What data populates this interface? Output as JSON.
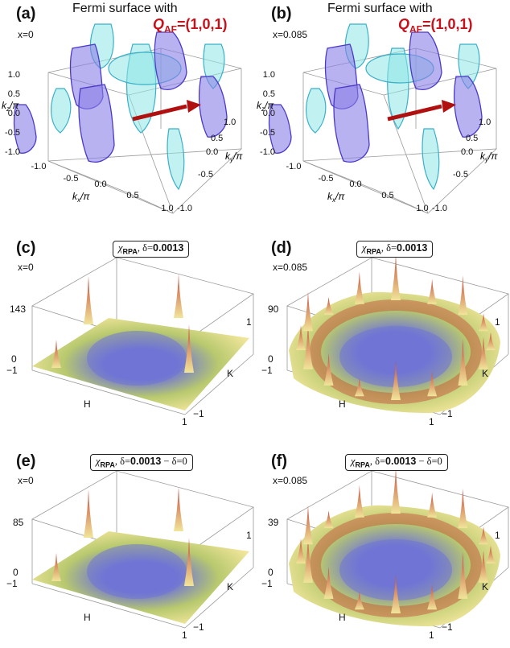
{
  "top_panels": [
    {
      "label": "(a)",
      "title": "Fermi surface with",
      "q_prefix": "Q",
      "q_sub": "AF",
      "q_value": "=(1,0,1)",
      "x_value": "x=0",
      "kz_ticks": [
        "1.0",
        "0.5",
        "0.0",
        "-0.5",
        "-1.0"
      ],
      "kx_ticks": [
        "-1.0",
        "-0.5",
        "0.0",
        "0.5",
        "1.0"
      ],
      "ky_ticks": [
        "1.0",
        "0.5",
        "0.0",
        "-0.5",
        "-1.0"
      ],
      "kz_label": "k",
      "kx_label": "k",
      "ky_label": "k"
    },
    {
      "label": "(b)",
      "title": "Fermi surface with",
      "q_prefix": "Q",
      "q_sub": "AF",
      "q_value": "=(1,0,1)",
      "x_value": "x=0.085",
      "kz_ticks": [
        "1.0",
        "0.5",
        "0.0",
        "-0.5",
        "-1.0"
      ],
      "kx_ticks": [
        "-1.0",
        "-0.5",
        "0.0",
        "0.5",
        "1.0"
      ],
      "ky_ticks": [
        "1.0",
        "0.5",
        "0.0",
        "-0.5",
        "-1.0"
      ],
      "kz_label": "k",
      "kx_label": "k",
      "ky_label": "k"
    }
  ],
  "surface_panels": [
    {
      "label": "(c)",
      "x_value": "x=0",
      "chi": "χ",
      "chi_sub": "RPA",
      "delta_text": ", δ=",
      "delta_value": "0.0013",
      "delta_suffix": "",
      "zmax": "143",
      "zmin": "0",
      "h_min": "−1",
      "h_max": "1",
      "k_min": "−1",
      "k_max": "1",
      "h_label": "H",
      "k_label": "K"
    },
    {
      "label": "(d)",
      "x_value": "x=0.085",
      "chi": "χ",
      "chi_sub": "RPA",
      "delta_text": ", δ=",
      "delta_value": "0.0013",
      "delta_suffix": "",
      "zmax": "90",
      "zmin": "0",
      "h_min": "−1",
      "h_max": "1",
      "k_min": "−1",
      "k_max": "1",
      "h_label": "H",
      "k_label": "K"
    },
    {
      "label": "(e)",
      "x_value": "x=0",
      "chi": "χ",
      "chi_sub": "RPA",
      "delta_text": ", δ=",
      "delta_value": "0.0013",
      "delta_suffix": " − δ=0",
      "zmax": "85",
      "zmin": "0",
      "h_min": "−1",
      "h_max": "1",
      "k_min": "−1",
      "k_max": "1",
      "h_label": "H",
      "k_label": "K"
    },
    {
      "label": "(f)",
      "x_value": "x=0.085",
      "chi": "χ",
      "chi_sub": "RPA",
      "delta_text": ", δ=",
      "delta_value": "0.0013",
      "delta_suffix": " − δ=0",
      "zmax": "39",
      "zmin": "0",
      "h_min": "−1",
      "h_max": "1",
      "k_min": "−1",
      "k_max": "1",
      "h_label": "H",
      "k_label": "K"
    }
  ],
  "colors": {
    "electron_pocket": "#8a7fe6",
    "hole_pocket": "#8fe6e6",
    "arrow": "#b01010",
    "q_text": "#c8101a",
    "surface_low": "#6f74d6",
    "surface_mid": "#b8c96e",
    "surface_high": "#f0e59a",
    "peak": "#c84a3a"
  }
}
